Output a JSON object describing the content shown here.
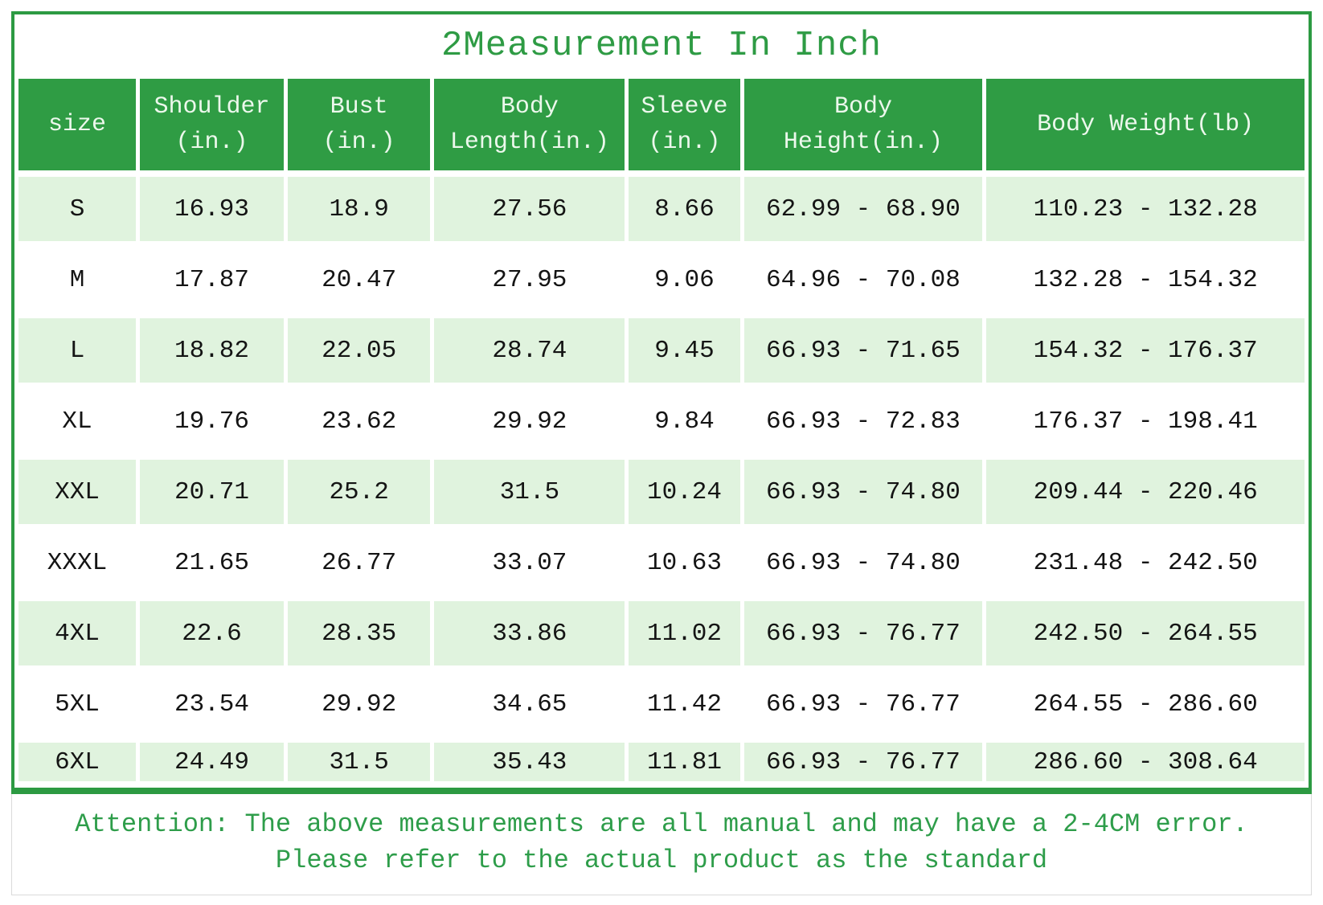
{
  "colors": {
    "header_green": "#2f9c44",
    "border_green": "#2c9a42",
    "row_light_green": "#e0f3de",
    "text_green": "#2e9b44",
    "cell_text": "#141414",
    "header_text": "#ecf8ec"
  },
  "chart_data": {
    "type": "table",
    "title": "2Measurement In Inch",
    "columns": [
      "size",
      "Shoulder\n(in.)",
      "Bust\n(in.)",
      "Body\nLength(in.)",
      "Sleeve\n(in.)",
      "Body\nHeight(in.)",
      "Body Weight(lb)"
    ],
    "rows": [
      [
        "S",
        "16.93",
        "18.9",
        "27.56",
        "8.66",
        "62.99 - 68.90",
        "110.23 - 132.28"
      ],
      [
        "M",
        "17.87",
        "20.47",
        "27.95",
        "9.06",
        "64.96 - 70.08",
        "132.28 - 154.32"
      ],
      [
        "L",
        "18.82",
        "22.05",
        "28.74",
        "9.45",
        "66.93 - 71.65",
        "154.32 - 176.37"
      ],
      [
        "XL",
        "19.76",
        "23.62",
        "29.92",
        "9.84",
        "66.93 - 72.83",
        "176.37 - 198.41"
      ],
      [
        "XXL",
        "20.71",
        "25.2",
        "31.5",
        "10.24",
        "66.93 - 74.80",
        "209.44 - 220.46"
      ],
      [
        "XXXL",
        "21.65",
        "26.77",
        "33.07",
        "10.63",
        "66.93 - 74.80",
        "231.48 - 242.50"
      ],
      [
        "4XL",
        "22.6",
        "28.35",
        "33.86",
        "11.02",
        "66.93 - 76.77",
        "242.50 - 264.55"
      ],
      [
        "5XL",
        "23.54",
        "29.92",
        "34.65",
        "11.42",
        "66.93 - 76.77",
        "264.55 - 286.60"
      ],
      [
        "6XL",
        "24.49",
        "31.5",
        "35.43",
        "11.81",
        "66.93 - 76.77",
        "286.60 - 308.64"
      ]
    ],
    "annotations": [
      "Attention: The above measurements are all manual and may have a 2-4CM error.",
      "Please refer to the actual product as the standard"
    ],
    "legend_position": "none",
    "grid": false
  }
}
